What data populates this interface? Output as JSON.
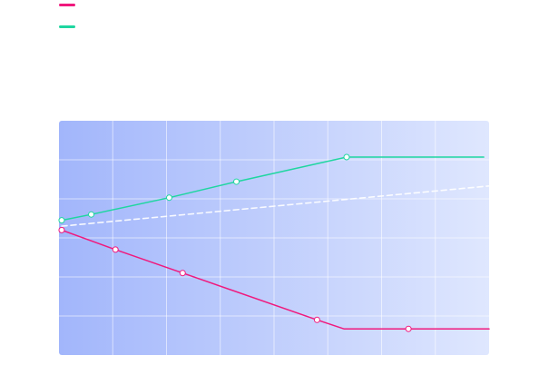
{
  "colors": {
    "series_pink": "#f0197d",
    "series_green": "#1fd6a0",
    "trend": "#ffffff",
    "plot_bg_left": "#a2b6fb",
    "plot_bg_right": "#dfe7fe",
    "grid": "#ffffff"
  },
  "chart_data": {
    "type": "line",
    "title": "",
    "xlabel": "",
    "ylabel": "",
    "xlim": [
      0,
      8
    ],
    "ylim": [
      0,
      6
    ],
    "grid": true,
    "legend_position": "top-left",
    "series": [
      {
        "color_key": "series_pink",
        "points": [
          [
            0.05,
            3.2
          ],
          [
            1.05,
            2.7
          ],
          [
            2.3,
            2.1
          ],
          [
            4.8,
            0.9
          ],
          [
            5.3,
            0.67
          ],
          [
            6.5,
            0.67
          ],
          [
            8.0,
            0.67
          ]
        ],
        "markers": [
          0,
          1,
          2,
          3,
          5
        ]
      },
      {
        "color_key": "series_green",
        "points": [
          [
            0.05,
            3.45
          ],
          [
            0.6,
            3.6
          ],
          [
            2.05,
            4.03
          ],
          [
            3.3,
            4.44
          ],
          [
            5.35,
            5.07
          ],
          [
            7.9,
            5.07
          ]
        ],
        "markers": [
          0,
          1,
          2,
          3,
          4
        ]
      },
      {
        "color_key": "trend",
        "dashed": true,
        "points": [
          [
            0.05,
            3.3
          ],
          [
            8.0,
            4.33
          ]
        ],
        "markers": []
      }
    ]
  }
}
